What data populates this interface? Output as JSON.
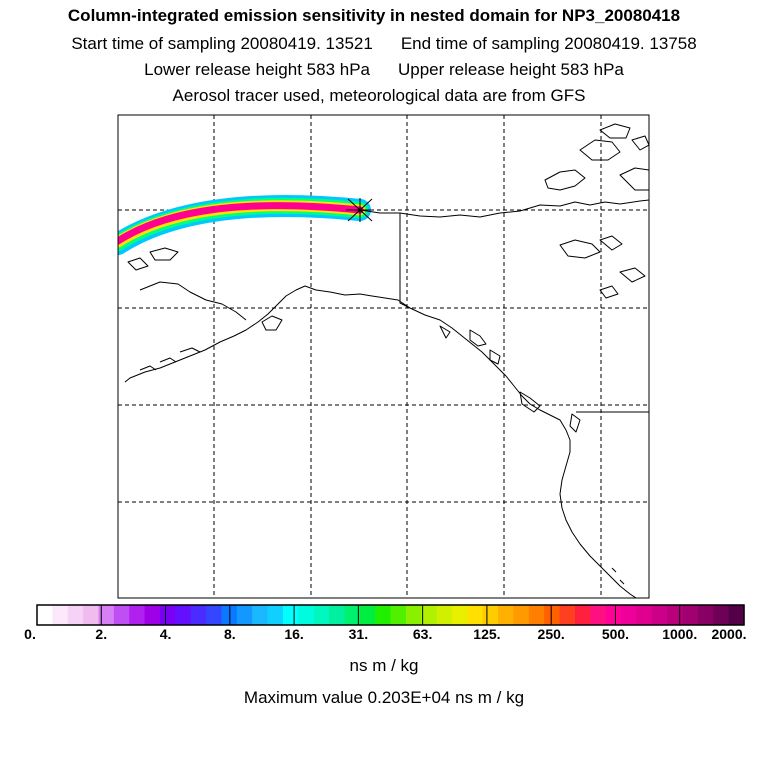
{
  "titles": {
    "main": "Column-integrated emission sensitivity in nested domain for NP3_20080418",
    "start": "Start time of sampling 20080419. 13521",
    "end": "End time of sampling 20080419. 13758",
    "lower": "Lower release height  583 hPa",
    "upper": "Upper release height  583 hPa",
    "tracer": "Aerosol tracer used, meteorological data are from GFS"
  },
  "colorbar": {
    "tick_labels": [
      "0.",
      "2.",
      "4.",
      "8.",
      "16.",
      "31.",
      "63.",
      "125.",
      "250.",
      "500.",
      "1000.",
      "2000."
    ],
    "colors": [
      "#ffffff",
      "#fbe8fb",
      "#f6d2f6",
      "#f0bcf0",
      "#d77ff5",
      "#c04ef5",
      "#b020ef",
      "#a000e8",
      "#7a00f5",
      "#6410ff",
      "#4a2cff",
      "#3446ff",
      "#0a78ff",
      "#1498ff",
      "#1ab8ff",
      "#10d0ff",
      "#00ffff",
      "#00fbe0",
      "#00f8c0",
      "#00f0a0",
      "#00f070",
      "#00ee40",
      "#20f000",
      "#50f000",
      "#8af000",
      "#b0f000",
      "#d0f000",
      "#e8f000",
      "#ffe000",
      "#ffcc00",
      "#ffb000",
      "#ff9a00",
      "#ff8000",
      "#ff6000",
      "#ff4020",
      "#ff2040",
      "#ff1080",
      "#ff0098",
      "#f0009a",
      "#e00090",
      "#cc0088",
      "#b8007c",
      "#a00070",
      "#880064",
      "#6e0058",
      "#540048"
    ],
    "units": "ns m / kg",
    "max_value": "Maximum value  0.203E+04 ns m / kg"
  },
  "map": {
    "marker": "release-location-star",
    "plume_colors": [
      "#00c8ff",
      "#00ff80",
      "#ffe000",
      "#ff0090"
    ]
  }
}
